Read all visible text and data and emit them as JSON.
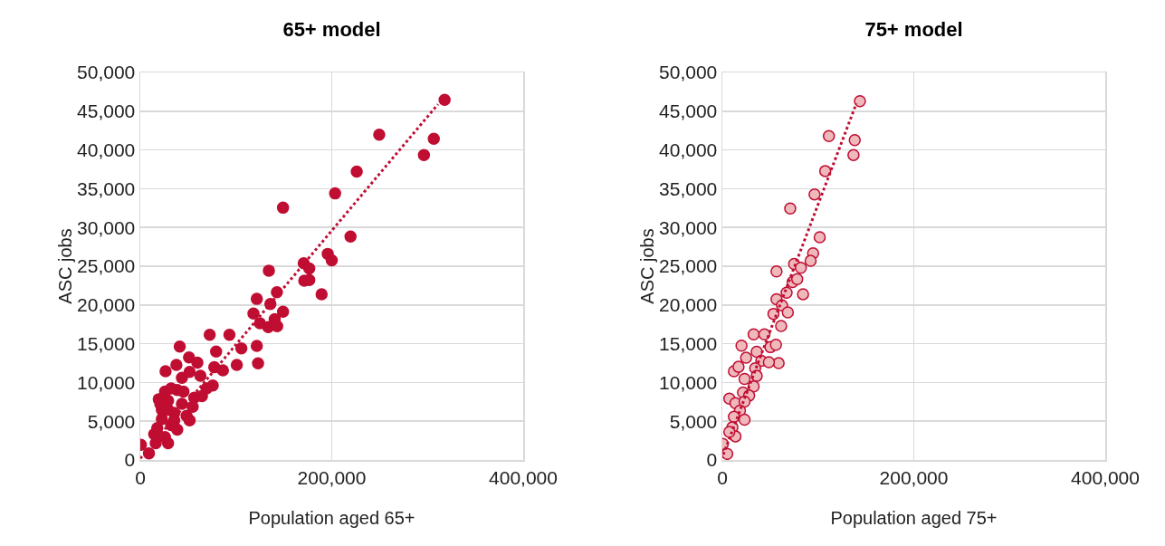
{
  "chart_data": [
    {
      "type": "scatter",
      "title": "65+ model",
      "xlabel": "Population aged 65+",
      "ylabel": "ASC jobs",
      "xlim": [
        0,
        400000
      ],
      "ylim": [
        0,
        50000
      ],
      "xticks": [
        {
          "value": 0,
          "label": "0"
        },
        {
          "value": 200000,
          "label": "200,000"
        },
        {
          "value": 400000,
          "label": "400,000"
        }
      ],
      "yticks": [
        {
          "value": 0,
          "label": "0"
        },
        {
          "value": 5000,
          "label": "5,000"
        },
        {
          "value": 10000,
          "label": "10,000"
        },
        {
          "value": 15000,
          "label": "15,000"
        },
        {
          "value": 20000,
          "label": "20,000"
        },
        {
          "value": 25000,
          "label": "25,000"
        },
        {
          "value": 30000,
          "label": "30,000"
        },
        {
          "value": 35000,
          "label": "35,000"
        },
        {
          "value": 40000,
          "label": "40,000"
        },
        {
          "value": 45000,
          "label": "45,000"
        },
        {
          "value": 50000,
          "label": "50,000"
        }
      ],
      "grid": true,
      "marker": "circle",
      "series": [
        {
          "color": "#c00d32",
          "x": [
            317900,
            249600,
            306600,
            296300,
            226100,
            203500,
            149100,
            219600,
            195800,
            200000,
            170700,
            176500,
            134300,
            171300,
            176500,
            189400,
            142700,
            121700,
            135900,
            149100,
            118200,
            125000,
            133700,
            140400,
            143000,
            72500,
            93100,
            121700,
            105600,
            79200,
            41200,
            100800,
            123000,
            50900,
            59600,
            37700,
            26400,
            77300,
            86300,
            51500,
            43500,
            62800,
            75700,
            69200,
            64400,
            56400,
            38600,
            19300,
            29000,
            43500,
            54700,
            22500,
            35400,
            48300,
            51500,
            22500,
            32200,
            38600,
            14500,
            25800,
            29000,
            16100,
            600,
            9000,
            20900,
            25800,
            32200,
            45100,
            17700,
            35400,
            29000
          ],
          "values": [
            46470,
            41960,
            41450,
            39330,
            37220,
            34390,
            32550,
            28820,
            26590,
            25760,
            25370,
            24700,
            24430,
            23140,
            23220,
            21370,
            21650,
            20780,
            20120,
            19140,
            18900,
            17650,
            17140,
            18160,
            17250,
            16160,
            16160,
            14710,
            14390,
            14000,
            14630,
            12270,
            12470,
            13220,
            12550,
            12270,
            11450,
            11960,
            11570,
            11370,
            10590,
            10860,
            9610,
            9220,
            8240,
            8040,
            9020,
            7840,
            7650,
            7250,
            6860,
            6470,
            6080,
            5690,
            5100,
            5290,
            4510,
            3920,
            3330,
            2940,
            2160,
            2160,
            1960,
            860,
            7250,
            8820,
            9220,
            8820,
            4120,
            5100,
            6470
          ]
        },
        {
          "type": "line",
          "color": "#c00d32",
          "line_style": "dotted",
          "marker": "none",
          "x": [
            0,
            311000
          ],
          "values": [
            200,
            45900
          ]
        }
      ]
    },
    {
      "type": "scatter",
      "title": "75+ model",
      "xlabel": "Population aged 75+",
      "ylabel": "ASC jobs",
      "xlim": [
        0,
        400000
      ],
      "ylim": [
        0,
        50000
      ],
      "xticks": [
        {
          "value": 0,
          "label": "0"
        },
        {
          "value": 200000,
          "label": "200,000"
        },
        {
          "value": 400000,
          "label": "400,000"
        }
      ],
      "yticks": [
        {
          "value": 0,
          "label": "0"
        },
        {
          "value": 5000,
          "label": "5,000"
        },
        {
          "value": 10000,
          "label": "10,000"
        },
        {
          "value": 15000,
          "label": "15,000"
        },
        {
          "value": 20000,
          "label": "20,000"
        },
        {
          "value": 25000,
          "label": "25,000"
        },
        {
          "value": 30000,
          "label": "30,000"
        },
        {
          "value": 35000,
          "label": "35,000"
        },
        {
          "value": 40000,
          "label": "40,000"
        },
        {
          "value": 45000,
          "label": "45,000"
        },
        {
          "value": 50000,
          "label": "50,000"
        }
      ],
      "grid": true,
      "marker": "circle",
      "series": [
        {
          "color": "#efb9bb",
          "x": [
            143700,
            111300,
            138300,
            137000,
            107500,
            96300,
            70900,
            101700,
            94800,
            92200,
            75000,
            82000,
            56600,
            73400,
            78200,
            84300,
            67100,
            56600,
            62300,
            53400,
            68400,
            61400,
            32700,
            43900,
            20000,
            50200,
            56000,
            58800,
            35900,
            12100,
            24800,
            40700,
            48600,
            16900,
            34300,
            23200,
            35900,
            32700,
            7300,
            21600,
            13700,
            28000,
            23200,
            18400,
            12100,
            23200,
            10500,
            13700,
            500,
            5100,
            7300
          ],
          "values": [
            46290,
            41800,
            41260,
            39350,
            37280,
            34270,
            32440,
            28730,
            26660,
            25690,
            25290,
            24790,
            24320,
            22950,
            23340,
            21390,
            21590,
            20730,
            19950,
            18850,
            19050,
            17290,
            16200,
            16200,
            14750,
            14560,
            14870,
            12490,
            13970,
            11440,
            13190,
            12800,
            12610,
            12020,
            11830,
            10460,
            10850,
            9490,
            7920,
            8700,
            7340,
            8310,
            7530,
            6360,
            5580,
            5190,
            4220,
            3050,
            2070,
            780,
            3630
          ]
        },
        {
          "type": "line",
          "color": "#c00d32",
          "line_style": "dotted",
          "marker": "none",
          "x": [
            1000,
            140000
          ],
          "values": [
            700,
            46000
          ]
        }
      ]
    }
  ]
}
